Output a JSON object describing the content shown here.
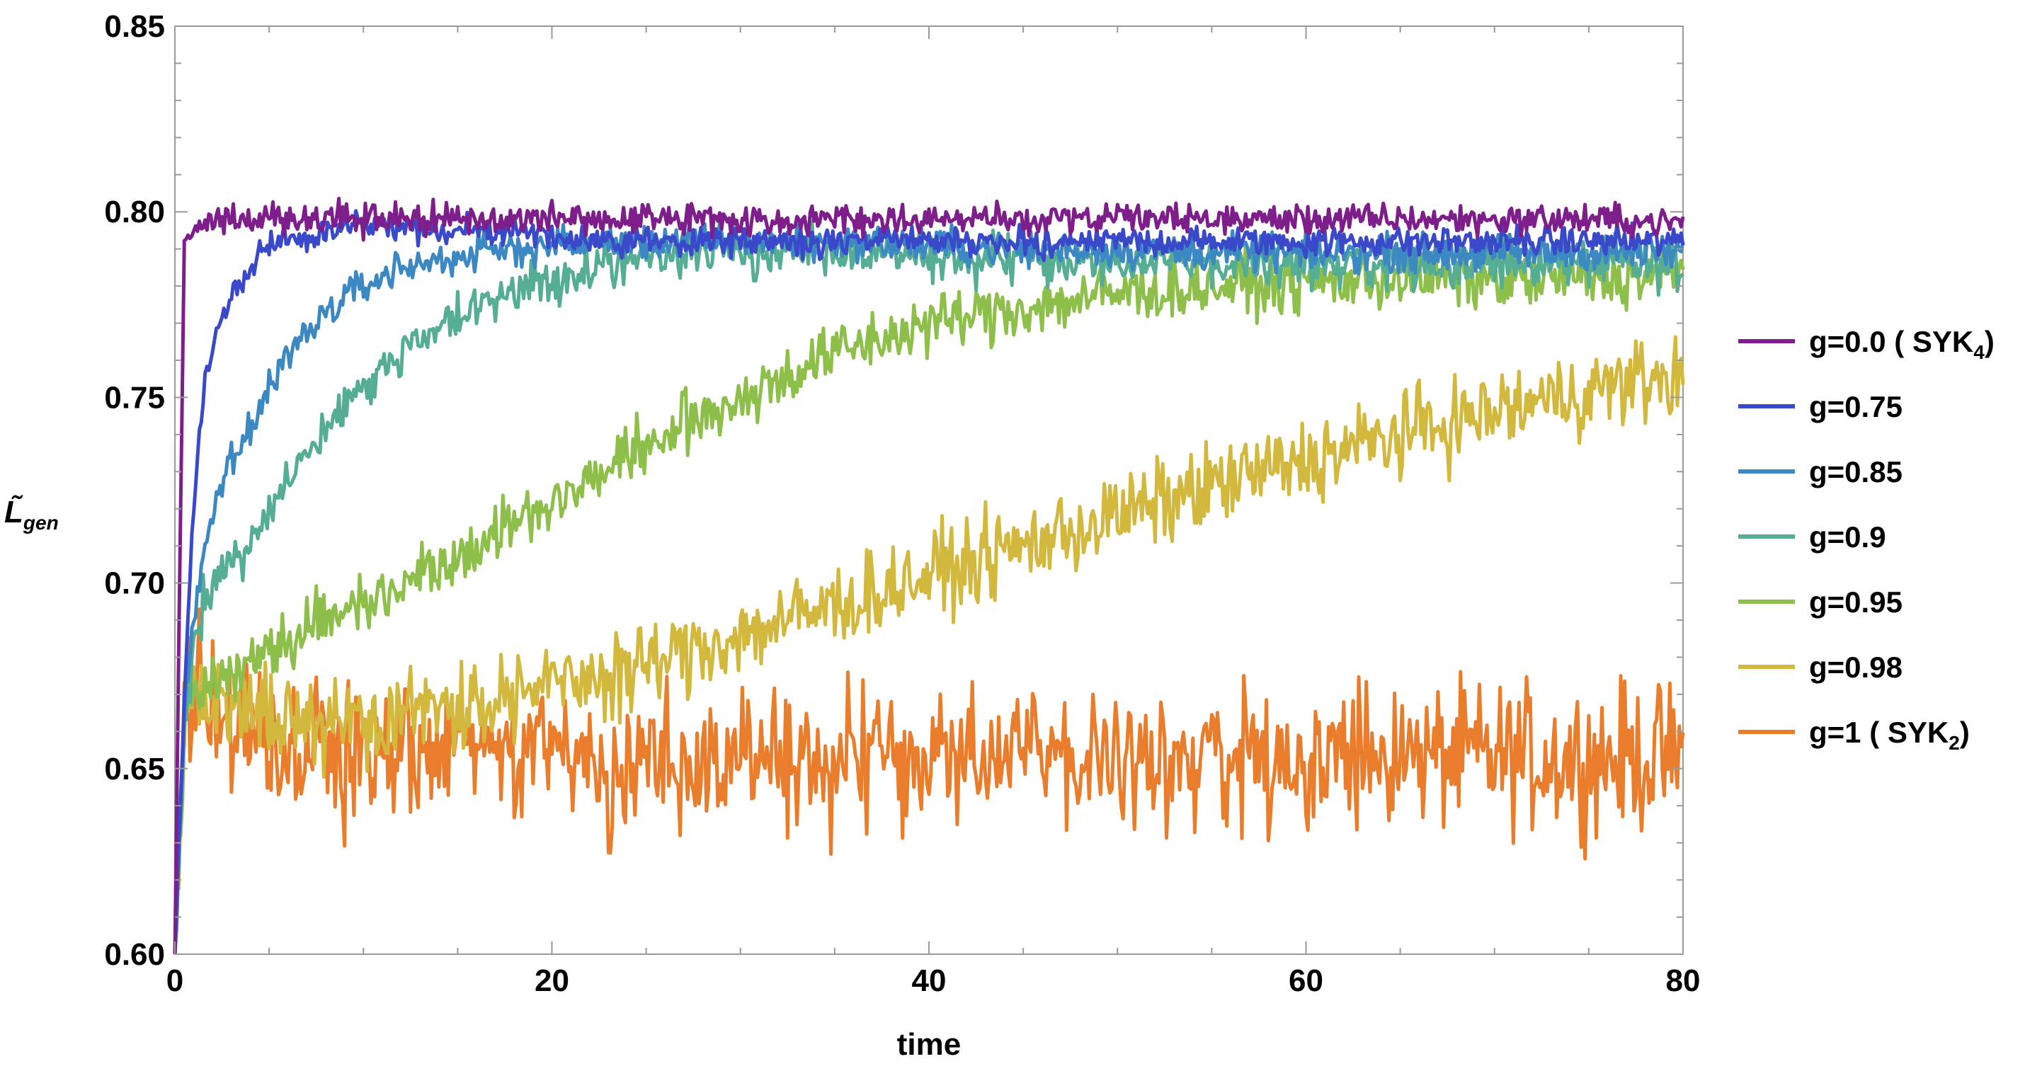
{
  "chart_data": {
    "type": "line",
    "xlabel": "time",
    "ylabel": "L̃gen",
    "ylabel_main": "L̃",
    "ylabel_sub": "gen",
    "xlim": [
      0,
      80
    ],
    "ylim": [
      0.6,
      0.85
    ],
    "x_ticks": [
      0,
      20,
      40,
      60,
      80
    ],
    "x_tick_labels": [
      "0",
      "20",
      "40",
      "60",
      "80"
    ],
    "y_ticks": [
      0.6,
      0.65,
      0.7,
      0.75,
      0.8,
      0.85
    ],
    "y_tick_labels": [
      "0.60",
      "0.65",
      "0.70",
      "0.75",
      "0.80",
      "0.85"
    ],
    "grid": false,
    "legend_position": "right",
    "sample_x": [
      0,
      0.5,
      1,
      1.5,
      2,
      3,
      4,
      5,
      6,
      8,
      10,
      12,
      15,
      18,
      20,
      25,
      30,
      35,
      40,
      45,
      50,
      55,
      60,
      65,
      70,
      75,
      80
    ],
    "series": [
      {
        "name": "g=0.0 ( SYK4)",
        "legend_main": "g=0.0 ( SYK",
        "legend_sub": "4",
        "legend_tail": ")",
        "color": "#7e1e8a",
        "values": [
          0.6,
          0.793,
          0.795,
          0.797,
          0.798,
          0.798,
          0.798,
          0.798,
          0.798,
          0.798,
          0.798,
          0.798,
          0.798,
          0.798,
          0.798,
          0.798,
          0.798,
          0.798,
          0.798,
          0.798,
          0.798,
          0.798,
          0.798,
          0.798,
          0.798,
          0.798,
          0.797
        ],
        "noise": 0.0025
      },
      {
        "name": "g=0.75",
        "legend_main": "g=0.75",
        "color": "#3a49c9",
        "values": [
          0.6,
          0.67,
          0.72,
          0.75,
          0.765,
          0.778,
          0.785,
          0.79,
          0.793,
          0.795,
          0.796,
          0.796,
          0.795,
          0.794,
          0.793,
          0.792,
          0.792,
          0.792,
          0.792,
          0.792,
          0.792,
          0.792,
          0.792,
          0.792,
          0.792,
          0.792,
          0.792
        ],
        "noise": 0.0025
      },
      {
        "name": "g=0.85",
        "legend_main": "g=0.85",
        "color": "#3c88c2",
        "values": [
          0.6,
          0.665,
          0.69,
          0.705,
          0.72,
          0.732,
          0.742,
          0.752,
          0.762,
          0.773,
          0.78,
          0.785,
          0.788,
          0.79,
          0.791,
          0.792,
          0.792,
          0.792,
          0.791,
          0.79,
          0.79,
          0.789,
          0.789,
          0.789,
          0.789,
          0.789,
          0.789
        ],
        "noise": 0.003
      },
      {
        "name": "g=0.9",
        "legend_main": "g=0.9",
        "color": "#55ad94",
        "values": [
          0.6,
          0.665,
          0.68,
          0.695,
          0.7,
          0.705,
          0.712,
          0.72,
          0.728,
          0.742,
          0.753,
          0.762,
          0.772,
          0.778,
          0.782,
          0.787,
          0.79,
          0.79,
          0.788,
          0.787,
          0.786,
          0.786,
          0.786,
          0.786,
          0.786,
          0.786,
          0.785
        ],
        "noise": 0.004
      },
      {
        "name": "g=0.95",
        "legend_main": "g=0.95",
        "color": "#8fbf4b",
        "values": [
          0.6,
          0.66,
          0.67,
          0.672,
          0.674,
          0.677,
          0.68,
          0.682,
          0.685,
          0.69,
          0.695,
          0.7,
          0.708,
          0.716,
          0.722,
          0.737,
          0.75,
          0.762,
          0.77,
          0.774,
          0.778,
          0.78,
          0.781,
          0.782,
          0.782,
          0.782,
          0.783
        ],
        "noise": 0.005
      },
      {
        "name": "g=0.98",
        "legend_main": "g=0.98",
        "color": "#d2b83c",
        "values": [
          0.6,
          0.665,
          0.668,
          0.668,
          0.667,
          0.665,
          0.664,
          0.663,
          0.663,
          0.663,
          0.664,
          0.665,
          0.667,
          0.67,
          0.672,
          0.678,
          0.686,
          0.694,
          0.702,
          0.71,
          0.718,
          0.726,
          0.733,
          0.74,
          0.746,
          0.752,
          0.756
        ],
        "noise": 0.007
      },
      {
        "name": "g=1 ( SYK2)",
        "legend_main": "g=1 ( SYK",
        "legend_sub": "2",
        "legend_tail": ")",
        "color": "#ea7d2c",
        "values": [
          0.6,
          0.665,
          0.672,
          0.668,
          0.664,
          0.66,
          0.658,
          0.656,
          0.655,
          0.654,
          0.654,
          0.653,
          0.653,
          0.653,
          0.653,
          0.653,
          0.653,
          0.653,
          0.653,
          0.653,
          0.653,
          0.653,
          0.653,
          0.653,
          0.653,
          0.653,
          0.653
        ],
        "noise": 0.012
      }
    ]
  }
}
